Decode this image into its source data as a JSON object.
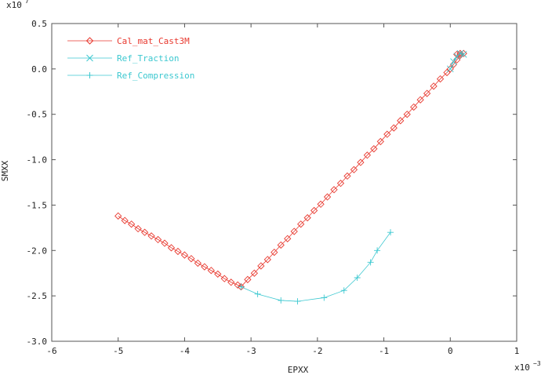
{
  "chart_data": {
    "type": "line",
    "xlabel": "EPXX",
    "ylabel": "SMXX",
    "x_multiplier": {
      "base": "x10",
      "exponent": "−3"
    },
    "y_multiplier": {
      "base": "x10",
      "exponent": "7"
    },
    "xlim": [
      -6,
      1
    ],
    "ylim": [
      -3.0,
      0.5
    ],
    "xticks": [
      -6,
      -5,
      -4,
      -3,
      -2,
      -1,
      0,
      1
    ],
    "yticks": [
      0.5,
      {
        "value": 0,
        "label": "0.0"
      },
      -0.5,
      {
        "value": -1,
        "label": "-1.0"
      },
      -1.5,
      {
        "value": -2,
        "label": "-2.0"
      },
      -2.5,
      {
        "value": -3,
        "label": "-3.0"
      }
    ],
    "legend": "upper left",
    "series": [
      {
        "name": "Cal_mat_Cast3M",
        "color": "#e8392f",
        "marker": "diamond",
        "x": [
          -5.0,
          -4.9,
          -4.8,
          -4.7,
          -4.6,
          -4.5,
          -4.4,
          -4.3,
          -4.2,
          -4.1,
          -4.0,
          -3.9,
          -3.8,
          -3.7,
          -3.6,
          -3.5,
          -3.4,
          -3.3,
          -3.2,
          -3.15,
          -3.05,
          -2.95,
          -2.85,
          -2.75,
          -2.65,
          -2.55,
          -2.45,
          -2.35,
          -2.25,
          -2.15,
          -2.05,
          -1.95,
          -1.85,
          -1.75,
          -1.65,
          -1.55,
          -1.45,
          -1.35,
          -1.25,
          -1.15,
          -1.05,
          -0.95,
          -0.85,
          -0.75,
          -0.65,
          -0.55,
          -0.45,
          -0.35,
          -0.25,
          -0.15,
          -0.05,
          0.0,
          0.05,
          0.1,
          0.15,
          0.2,
          0.15,
          0.1
        ],
        "values": [
          -1.62,
          -1.67,
          -1.71,
          -1.76,
          -1.8,
          -1.84,
          -1.88,
          -1.92,
          -1.97,
          -2.01,
          -2.05,
          -2.09,
          -2.14,
          -2.18,
          -2.22,
          -2.26,
          -2.31,
          -2.35,
          -2.38,
          -2.4,
          -2.32,
          -2.25,
          -2.17,
          -2.1,
          -2.02,
          -1.94,
          -1.87,
          -1.79,
          -1.71,
          -1.64,
          -1.56,
          -1.49,
          -1.41,
          -1.33,
          -1.26,
          -1.18,
          -1.11,
          -1.03,
          -0.95,
          -0.88,
          -0.8,
          -0.72,
          -0.65,
          -0.57,
          -0.5,
          -0.42,
          -0.34,
          -0.27,
          -0.19,
          -0.11,
          -0.04,
          0.0,
          0.05,
          0.1,
          0.15,
          0.17,
          0.17,
          0.16
        ]
      },
      {
        "name": "Ref_Traction",
        "color": "#3cc8d0",
        "marker": "x",
        "x": [
          0.0,
          0.05,
          0.1,
          0.15,
          0.2
        ],
        "values": [
          0.0,
          0.08,
          0.14,
          0.17,
          0.16
        ]
      },
      {
        "name": "Ref_Compression",
        "color": "#3cc8d0",
        "marker": "plus",
        "x": [
          -3.15,
          -2.9,
          -2.55,
          -2.3,
          -1.9,
          -1.6,
          -1.4,
          -1.2,
          -1.1,
          -0.9
        ],
        "values": [
          -2.4,
          -2.48,
          -2.55,
          -2.56,
          -2.52,
          -2.44,
          -2.3,
          -2.13,
          -2.0,
          -1.8
        ]
      }
    ]
  }
}
